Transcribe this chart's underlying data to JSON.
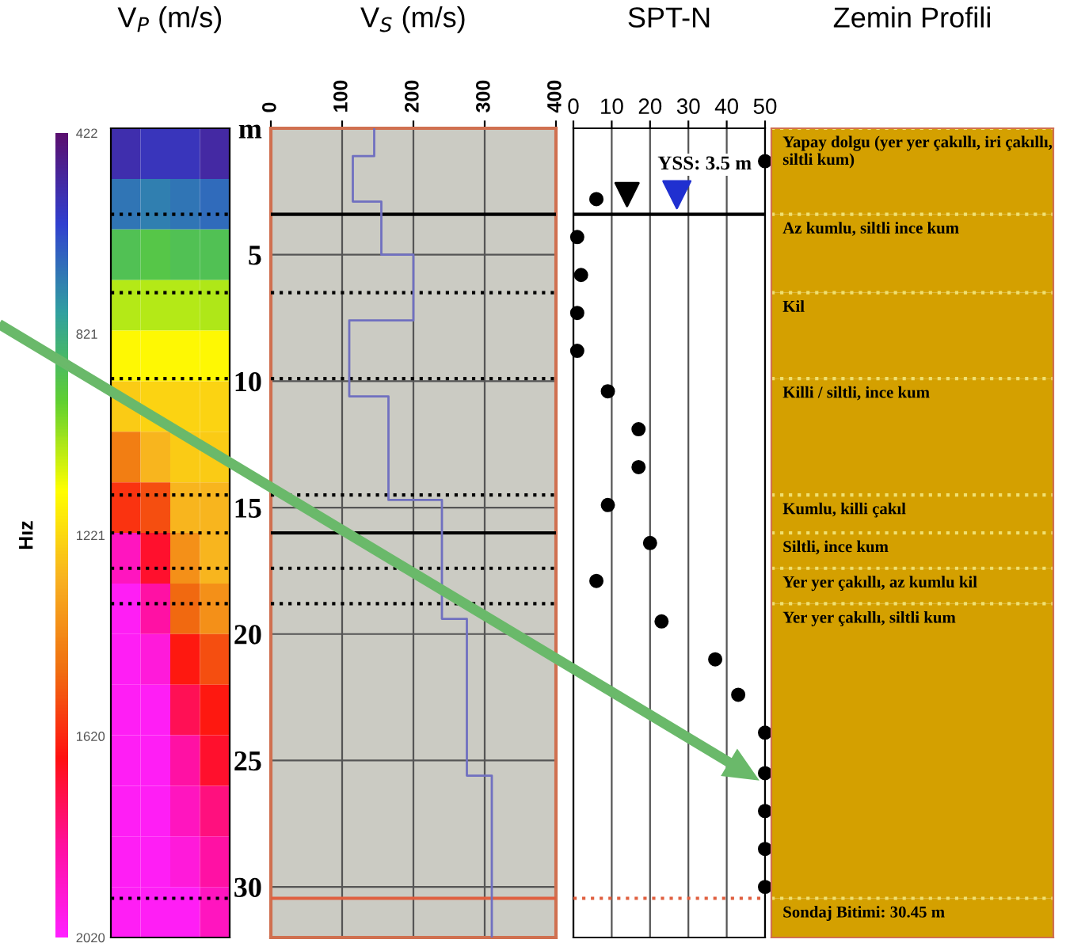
{
  "chart_data": [
    {
      "type": "heatmap",
      "title": "V$_{P}$ (m/s)",
      "clabel": "Hız",
      "categories": [
        null,
        null,
        null,
        null
      ],
      "y_categories": [
        null,
        null,
        null,
        null,
        null,
        null,
        null,
        null,
        null,
        null,
        null,
        null,
        null,
        null,
        null,
        null
      ],
      "cells": [
        [
          540,
          560,
          560,
          520
        ],
        [
          700,
          720,
          700,
          680
        ],
        [
          900,
          920,
          900,
          900
        ],
        [
          1050,
          1050,
          1050,
          1040
        ],
        [
          1150,
          1150,
          1150,
          1150
        ],
        [
          1250,
          1230,
          1230,
          1230
        ],
        [
          1450,
          1300,
          1250,
          1250
        ],
        [
          1600,
          1550,
          1300,
          1300
        ],
        [
          1900,
          1700,
          1400,
          1300
        ],
        [
          2000,
          1850,
          1500,
          1400
        ],
        [
          2000,
          1950,
          1650,
          1550
        ],
        [
          2000,
          2000,
          1750,
          1650
        ],
        [
          2000,
          2000,
          1850,
          1700
        ],
        [
          2000,
          2000,
          1900,
          1800
        ],
        [
          2000,
          2000,
          1950,
          1850
        ],
        [
          2000,
          2000,
          2000,
          1900
        ]
      ],
      "clim": [
        422,
        2020
      ],
      "cticks": [
        422,
        821,
        1221,
        1620,
        2020
      ],
      "tick_labels": false
    },
    {
      "type": "step",
      "orientation": "horizontal",
      "title": "V$_{S}$ (m/s)",
      "x": [
        0,
        1.1,
        2.9,
        5,
        7.6,
        10.6,
        14.7,
        19.4,
        25.6,
        32
      ],
      "series": [
        {
          "color": "#7070c0",
          "values": [
            145,
            115,
            155,
            200,
            110,
            165,
            240,
            275,
            310,
            310
          ]
        }
      ],
      "xlim": [
        0,
        400
      ],
      "xticks": [
        0,
        100,
        200,
        300,
        400
      ],
      "ylim": [
        32,
        0
      ],
      "yticks": [
        {
          "value": 0,
          "label": "m"
        },
        5,
        10,
        15,
        20,
        25,
        30
      ],
      "grid": true,
      "ref_lines": [
        {
          "axis": "y",
          "value": 3.4,
          "color": "#000000",
          "line_style": "solid"
        },
        {
          "axis": "y",
          "value": 6.5,
          "color": "#000000",
          "line_style": "dotted"
        },
        {
          "axis": "y",
          "value": 9.9,
          "color": "#000000",
          "line_style": "dotted"
        },
        {
          "axis": "y",
          "value": 14.5,
          "color": "#000000",
          "line_style": "dotted"
        },
        {
          "axis": "y",
          "value": 16.0,
          "color": "#000000",
          "line_style": "solid"
        },
        {
          "axis": "y",
          "value": 17.4,
          "color": "#000000",
          "line_style": "dotted"
        },
        {
          "axis": "y",
          "value": 18.8,
          "color": "#000000",
          "line_style": "dotted"
        },
        {
          "axis": "y",
          "value": 30.45,
          "color": "#e06040",
          "line_style": "solid"
        }
      ]
    },
    {
      "type": "scatter",
      "orientation": "horizontal",
      "title": "SPT-N",
      "marker": "circle",
      "x": [
        1.3,
        2.8,
        4.3,
        5.8,
        7.3,
        8.8,
        10.4,
        11.9,
        13.4,
        14.9,
        16.4,
        17.9,
        19.5,
        21.0,
        22.4,
        23.9,
        25.5,
        27.0,
        28.5,
        30.0
      ],
      "series": [
        {
          "color": "#000000",
          "values": [
            50,
            6,
            1,
            2,
            1,
            1,
            9,
            17,
            17,
            9,
            20,
            6,
            23,
            37,
            43,
            50,
            50,
            50,
            50,
            50
          ]
        }
      ],
      "xlim": [
        0,
        50
      ],
      "xticks": [
        0,
        10,
        20,
        30,
        40,
        50
      ],
      "ylim": [
        32,
        0
      ],
      "tick_labels": "x",
      "grid": true,
      "annotations": [
        "YSS: 3.5 m"
      ],
      "ref_lines": [
        {
          "axis": "y",
          "value": 3.4,
          "color": "#000000",
          "line_style": "solid"
        },
        {
          "axis": "y",
          "value": 30.45,
          "color": "#e06040",
          "line_style": "dotted"
        }
      ]
    },
    {
      "type": "bar",
      "stacked": true,
      "title": "Zemin Profili",
      "categories": [
        null
      ],
      "ylim": [
        32,
        0
      ],
      "tick_labels": false,
      "series": [
        {
          "name": "Yapay dolgu (yer yer çakıllı, iri çakıllı, siltli kum)",
          "color": "#d4a000",
          "values": [
            3.4
          ]
        },
        {
          "name": "Az kumlu, siltli ince kum",
          "color": "#d4a000",
          "values": [
            3.1
          ]
        },
        {
          "name": "Kil",
          "color": "#d4a000",
          "values": [
            3.4
          ]
        },
        {
          "name": "Killi / siltli, ince kum",
          "color": "#d4a000",
          "values": [
            4.6
          ]
        },
        {
          "name": "Kumlu, killi çakıl",
          "color": "#d4a000",
          "values": [
            1.5
          ]
        },
        {
          "name": "Siltli, ince kum",
          "color": "#d4a000",
          "values": [
            1.4
          ]
        },
        {
          "name": "Yer yer çakıllı, az kumlu kil",
          "color": "#d4a000",
          "values": [
            1.4
          ]
        },
        {
          "name": "Yer yer çakıllı, siltli kum",
          "color": "#d4a000",
          "values": [
            11.65
          ]
        },
        {
          "name": "Sondaj Bitimi: 30.45 m",
          "color": "#d4a000",
          "values": [
            1.55
          ]
        }
      ]
    }
  ]
}
